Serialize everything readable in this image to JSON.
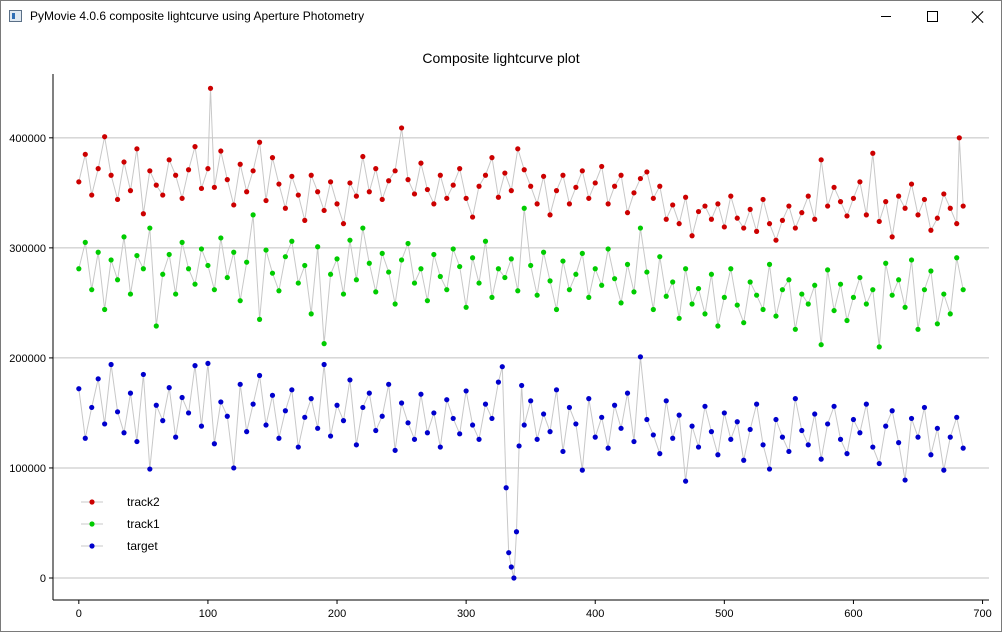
{
  "window": {
    "title": "PyMovie 4.0.6 composite lightcurve using Aperture Photometry",
    "app_icon": "pymovie-app-icon",
    "controls": {
      "minimize_icon": "minimize-icon",
      "maximize_icon": "maximize-icon",
      "close_icon": "close-icon"
    }
  },
  "chart_data": {
    "type": "scatter",
    "title": "Composite lightcurve plot",
    "xlabel": "",
    "ylabel": "",
    "xlim": [
      -20,
      705
    ],
    "ylim": [
      -20000,
      458000
    ],
    "x_ticks": [
      0,
      100,
      200,
      300,
      400,
      500,
      600,
      700
    ],
    "y_ticks": [
      0,
      100000,
      200000,
      300000,
      400000
    ],
    "y_tick_labels": [
      "0",
      "100000",
      "200000",
      "300000",
      "400000"
    ],
    "grid": "horizontal",
    "legend_position": "bottom-left",
    "series": [
      {
        "name": "track2",
        "color": "#cc0000",
        "x": [
          0,
          5,
          10,
          15,
          20,
          25,
          30,
          35,
          40,
          45,
          50,
          55,
          60,
          65,
          70,
          75,
          80,
          85,
          90,
          95,
          100,
          102,
          105,
          110,
          115,
          120,
          125,
          130,
          135,
          140,
          145,
          150,
          155,
          160,
          165,
          170,
          175,
          180,
          185,
          190,
          195,
          200,
          205,
          210,
          215,
          220,
          225,
          230,
          235,
          240,
          245,
          250,
          255,
          260,
          265,
          270,
          275,
          280,
          285,
          290,
          295,
          300,
          305,
          310,
          315,
          320,
          325,
          330,
          335,
          340,
          345,
          350,
          355,
          360,
          365,
          370,
          375,
          380,
          385,
          390,
          395,
          400,
          405,
          410,
          415,
          420,
          425,
          430,
          435,
          440,
          445,
          450,
          455,
          460,
          465,
          470,
          475,
          480,
          485,
          490,
          495,
          500,
          505,
          510,
          515,
          520,
          525,
          530,
          535,
          540,
          545,
          550,
          555,
          560,
          565,
          570,
          575,
          580,
          585,
          590,
          595,
          600,
          605,
          610,
          615,
          620,
          625,
          630,
          635,
          640,
          645,
          650,
          655,
          660,
          665,
          670,
          675,
          680,
          682,
          685
        ],
        "y": [
          360000,
          385000,
          348000,
          372000,
          401000,
          366000,
          344000,
          378000,
          352000,
          390000,
          331000,
          370000,
          357000,
          348000,
          380000,
          366000,
          345000,
          371000,
          392000,
          354000,
          372000,
          445000,
          355000,
          388000,
          362000,
          339000,
          376000,
          351000,
          370000,
          396000,
          343000,
          382000,
          358000,
          336000,
          365000,
          348000,
          325000,
          366000,
          351000,
          334000,
          360000,
          340000,
          322000,
          359000,
          347000,
          383000,
          351000,
          372000,
          344000,
          361000,
          370000,
          409000,
          362000,
          349000,
          377000,
          353000,
          340000,
          366000,
          345000,
          357000,
          372000,
          345000,
          328000,
          356000,
          366000,
          382000,
          346000,
          368000,
          352000,
          390000,
          371000,
          356000,
          340000,
          365000,
          330000,
          352000,
          366000,
          340000,
          355000,
          370000,
          345000,
          359000,
          374000,
          340000,
          356000,
          366000,
          332000,
          350000,
          363000,
          369000,
          345000,
          356000,
          326000,
          339000,
          322000,
          346000,
          311000,
          333000,
          338000,
          326000,
          340000,
          319000,
          347000,
          327000,
          318000,
          335000,
          315000,
          344000,
          322000,
          307000,
          325000,
          338000,
          318000,
          332000,
          347000,
          326000,
          380000,
          338000,
          355000,
          342000,
          329000,
          345000,
          360000,
          330000,
          386000,
          324000,
          342000,
          310000,
          347000,
          336000,
          358000,
          330000,
          344000,
          316000,
          327000,
          349000,
          336000,
          322000,
          400000,
          338000
        ]
      },
      {
        "name": "track1",
        "color": "#00cc00",
        "x": [
          0,
          5,
          10,
          15,
          20,
          25,
          30,
          35,
          40,
          45,
          50,
          55,
          60,
          65,
          70,
          75,
          80,
          85,
          90,
          95,
          100,
          105,
          110,
          115,
          120,
          125,
          130,
          135,
          140,
          145,
          150,
          155,
          160,
          165,
          170,
          175,
          180,
          185,
          190,
          195,
          200,
          205,
          210,
          215,
          220,
          225,
          230,
          235,
          240,
          245,
          250,
          255,
          260,
          265,
          270,
          275,
          280,
          285,
          290,
          295,
          300,
          305,
          310,
          315,
          320,
          325,
          330,
          335,
          340,
          345,
          350,
          355,
          360,
          365,
          370,
          375,
          380,
          385,
          390,
          395,
          400,
          405,
          410,
          415,
          420,
          425,
          430,
          435,
          440,
          445,
          450,
          455,
          460,
          465,
          470,
          475,
          480,
          485,
          490,
          495,
          500,
          505,
          510,
          515,
          520,
          525,
          530,
          535,
          540,
          545,
          550,
          555,
          560,
          565,
          570,
          575,
          580,
          585,
          590,
          595,
          600,
          605,
          610,
          615,
          620,
          625,
          630,
          635,
          640,
          645,
          650,
          655,
          660,
          665,
          670,
          675,
          680,
          685
        ],
        "y": [
          281000,
          305000,
          262000,
          296000,
          244000,
          289000,
          271000,
          310000,
          258000,
          293000,
          281000,
          318000,
          229000,
          276000,
          294000,
          258000,
          305000,
          281000,
          267000,
          299000,
          284000,
          262000,
          309000,
          273000,
          296000,
          252000,
          287000,
          330000,
          235000,
          298000,
          277000,
          261000,
          292000,
          306000,
          268000,
          284000,
          240000,
          301000,
          213000,
          276000,
          290000,
          258000,
          307000,
          271000,
          318000,
          286000,
          260000,
          295000,
          278000,
          249000,
          289000,
          304000,
          268000,
          281000,
          252000,
          294000,
          274000,
          262000,
          299000,
          283000,
          246000,
          291000,
          268000,
          306000,
          255000,
          281000,
          273000,
          290000,
          261000,
          336000,
          284000,
          257000,
          296000,
          270000,
          244000,
          288000,
          262000,
          276000,
          295000,
          255000,
          281000,
          266000,
          299000,
          272000,
          250000,
          285000,
          260000,
          318000,
          278000,
          244000,
          292000,
          256000,
          269000,
          236000,
          281000,
          249000,
          263000,
          240000,
          276000,
          229000,
          255000,
          281000,
          248000,
          232000,
          269000,
          257000,
          244000,
          285000,
          238000,
          262000,
          271000,
          226000,
          258000,
          249000,
          266000,
          212000,
          280000,
          243000,
          267000,
          234000,
          255000,
          273000,
          249000,
          262000,
          210000,
          286000,
          257000,
          271000,
          246000,
          289000,
          226000,
          262000,
          279000,
          231000,
          258000,
          240000,
          291000,
          262000
        ]
      },
      {
        "name": "target",
        "color": "#0000cc",
        "x": [
          0,
          5,
          10,
          15,
          20,
          25,
          30,
          35,
          40,
          45,
          50,
          55,
          60,
          65,
          70,
          75,
          80,
          85,
          90,
          95,
          100,
          105,
          110,
          115,
          120,
          125,
          130,
          135,
          140,
          145,
          150,
          155,
          160,
          165,
          170,
          175,
          180,
          185,
          190,
          195,
          200,
          205,
          210,
          215,
          220,
          225,
          230,
          235,
          240,
          245,
          250,
          255,
          260,
          265,
          270,
          275,
          280,
          285,
          290,
          295,
          300,
          305,
          310,
          315,
          320,
          325,
          328,
          331,
          333,
          335,
          337,
          339,
          341,
          343,
          345,
          350,
          355,
          360,
          365,
          370,
          375,
          380,
          385,
          390,
          395,
          400,
          405,
          410,
          415,
          420,
          425,
          430,
          435,
          440,
          445,
          450,
          455,
          460,
          465,
          470,
          475,
          480,
          485,
          490,
          495,
          500,
          505,
          510,
          515,
          520,
          525,
          530,
          535,
          540,
          545,
          550,
          555,
          560,
          565,
          570,
          575,
          580,
          585,
          590,
          595,
          600,
          605,
          610,
          615,
          620,
          625,
          630,
          635,
          640,
          645,
          650,
          655,
          660,
          665,
          670,
          675,
          680,
          685
        ],
        "y": [
          172000,
          127000,
          155000,
          181000,
          140000,
          194000,
          151000,
          132000,
          168000,
          124000,
          185000,
          99000,
          157000,
          143000,
          173000,
          128000,
          164000,
          150000,
          193000,
          138000,
          195000,
          122000,
          160000,
          147000,
          100000,
          176000,
          133000,
          158000,
          184000,
          139000,
          166000,
          127000,
          152000,
          171000,
          119000,
          146000,
          163000,
          136000,
          194000,
          129000,
          157000,
          143000,
          180000,
          121000,
          155000,
          168000,
          134000,
          147000,
          176000,
          116000,
          159000,
          141000,
          126000,
          167000,
          132000,
          150000,
          119000,
          162000,
          145000,
          131000,
          170000,
          139000,
          126000,
          158000,
          145000,
          178000,
          192000,
          82000,
          23000,
          10000,
          0,
          42000,
          120000,
          175000,
          139000,
          161000,
          126000,
          149000,
          133000,
          171000,
          115000,
          155000,
          140000,
          98000,
          163000,
          128000,
          146000,
          118000,
          157000,
          136000,
          168000,
          124000,
          201000,
          144000,
          130000,
          113000,
          161000,
          127000,
          148000,
          88000,
          138000,
          119000,
          156000,
          133000,
          112000,
          150000,
          126000,
          142000,
          107000,
          135000,
          158000,
          121000,
          99000,
          144000,
          128000,
          115000,
          163000,
          134000,
          121000,
          149000,
          108000,
          140000,
          156000,
          126000,
          113000,
          144000,
          132000,
          158000,
          119000,
          104000,
          138000,
          152000,
          123000,
          89000,
          145000,
          128000,
          155000,
          112000,
          136000,
          98000,
          128000,
          146000,
          118000
        ]
      }
    ]
  }
}
